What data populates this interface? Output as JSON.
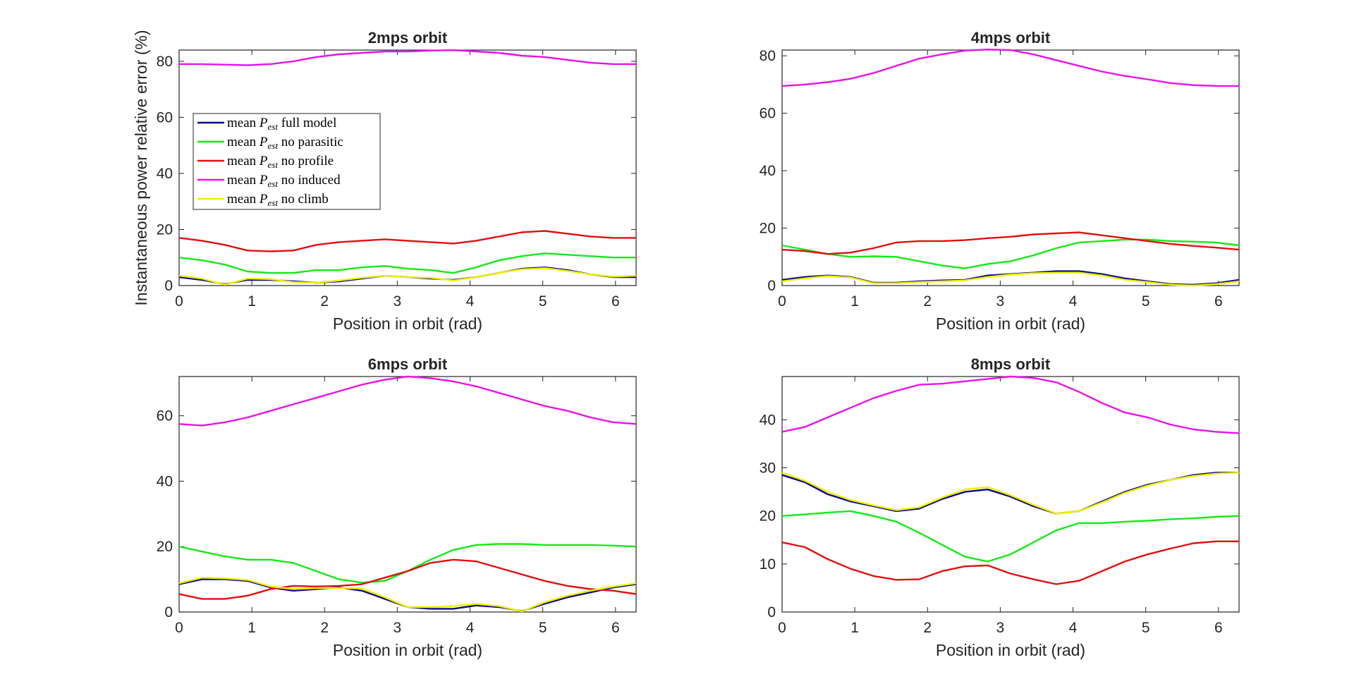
{
  "figure": {
    "ylabel": "Instantaneous power relative error (%)"
  },
  "legend": {
    "entries": [
      {
        "prefix": "mean ",
        "sym": "P",
        "sub": "est",
        "suffix": " full model",
        "color": "#0a0a8c"
      },
      {
        "prefix": "mean ",
        "sym": "P",
        "sub": "est",
        "suffix": " no parasitic",
        "color": "#18e818"
      },
      {
        "prefix": "mean ",
        "sym": "P",
        "sub": "est",
        "suffix": " no profile",
        "color": "#e01010"
      },
      {
        "prefix": "mean ",
        "sym": "P",
        "sub": "est",
        "suffix": " no induced",
        "color": "#e813e8"
      },
      {
        "prefix": "mean ",
        "sym": "P",
        "sub": "est",
        "suffix": " no climb",
        "color": "#f0f000"
      }
    ]
  },
  "chart_data": [
    {
      "type": "line",
      "title": "2mps orbit",
      "xlabel": "Position in orbit (rad)",
      "ylabel": "Instantaneous power relative error (%)",
      "xlim": [
        0,
        6.2832
      ],
      "ylim": [
        0,
        84
      ],
      "xticks": [
        0,
        1,
        2,
        3,
        4,
        5,
        6
      ],
      "yticks": [
        0,
        20,
        40,
        60,
        80
      ],
      "legend_position": "left-middle",
      "x": [
        0,
        0.314,
        0.628,
        0.942,
        1.257,
        1.571,
        1.885,
        2.199,
        2.513,
        2.827,
        3.142,
        3.456,
        3.77,
        4.084,
        4.398,
        4.712,
        5.027,
        5.341,
        5.655,
        5.969,
        6.283
      ],
      "series": [
        {
          "name": "mean Pest full model",
          "color": "#0a0a8c",
          "values": [
            3,
            2,
            0.5,
            2,
            2,
            1.5,
            1,
            1.5,
            2.5,
            3.5,
            3,
            2.5,
            2,
            3,
            4.5,
            6,
            6.5,
            5.5,
            4,
            3,
            3
          ]
        },
        {
          "name": "mean Pest no parasitic",
          "color": "#18e818",
          "values": [
            10,
            9,
            7.5,
            5,
            4.5,
            4.5,
            5.5,
            5.5,
            6.5,
            7,
            6,
            5.5,
            4.5,
            6.5,
            9,
            10.5,
            11.5,
            11,
            10.5,
            10,
            10
          ]
        },
        {
          "name": "mean Pest no profile",
          "color": "#e01010",
          "values": [
            17,
            16,
            14.5,
            12.5,
            12.2,
            12.5,
            14.5,
            15.5,
            16,
            16.5,
            16,
            15.5,
            15,
            16,
            17.5,
            19,
            19.5,
            18.5,
            17.5,
            17,
            17
          ]
        },
        {
          "name": "mean Pest no induced",
          "color": "#e813e8",
          "values": [
            79,
            79,
            78.8,
            78.6,
            79,
            80,
            81.5,
            82.5,
            83,
            83.5,
            83.5,
            83.8,
            84,
            83.5,
            83,
            82,
            81.5,
            80.5,
            79.5,
            79,
            79
          ]
        },
        {
          "name": "mean Pest no climb",
          "color": "#f0f000",
          "values": [
            3.5,
            2.5,
            0.3,
            2.5,
            2.3,
            1.2,
            1,
            1.8,
            2.8,
            3.5,
            3,
            2.8,
            1.8,
            3,
            4.5,
            5.8,
            6.2,
            5.2,
            4,
            3.2,
            3.5
          ]
        }
      ]
    },
    {
      "type": "line",
      "title": "4mps orbit",
      "xlabel": "Position in orbit (rad)",
      "ylabel": "",
      "xlim": [
        0,
        6.2832
      ],
      "ylim": [
        0,
        82
      ],
      "xticks": [
        0,
        1,
        2,
        3,
        4,
        5,
        6
      ],
      "yticks": [
        0,
        20,
        40,
        60,
        80
      ],
      "x": [
        0,
        0.314,
        0.628,
        0.942,
        1.257,
        1.571,
        1.885,
        2.199,
        2.513,
        2.827,
        3.142,
        3.456,
        3.77,
        4.084,
        4.398,
        4.712,
        5.027,
        5.341,
        5.655,
        5.969,
        6.283
      ],
      "series": [
        {
          "name": "mean Pest full model",
          "color": "#0a0a8c",
          "values": [
            2,
            3,
            3.5,
            3,
            1,
            1,
            1.5,
            1.8,
            2,
            3.5,
            4,
            4.5,
            5,
            5,
            4,
            2.5,
            1.5,
            0.5,
            0.3,
            0.8,
            2
          ]
        },
        {
          "name": "mean Pest no parasitic",
          "color": "#18e818",
          "values": [
            14,
            12.5,
            11,
            10,
            10.2,
            10,
            8.5,
            7,
            6,
            7.5,
            8.5,
            10.5,
            13,
            15,
            15.5,
            16,
            16,
            15.5,
            15.3,
            15,
            14
          ]
        },
        {
          "name": "mean Pest no profile",
          "color": "#e01010",
          "values": [
            12.5,
            12,
            11,
            11.5,
            13,
            15,
            15.5,
            15.5,
            15.8,
            16.5,
            17,
            17.8,
            18.2,
            18.5,
            17.5,
            16.5,
            15.5,
            14.5,
            13.8,
            13.2,
            12.5
          ]
        },
        {
          "name": "mean Pest no induced",
          "color": "#e813e8",
          "values": [
            69.5,
            70,
            70.8,
            72,
            74,
            76.5,
            79,
            80.5,
            81.8,
            82.2,
            82,
            80.5,
            78.5,
            76.5,
            74.5,
            73,
            71.8,
            70.5,
            69.8,
            69.5,
            69.5
          ]
        },
        {
          "name": "mean Pest no climb",
          "color": "#f0f000",
          "values": [
            1.5,
            2.5,
            3.3,
            2.8,
            0.8,
            0.8,
            1.2,
            1.5,
            1.8,
            3,
            3.8,
            4.3,
            4.5,
            4.5,
            3.5,
            2,
            1.2,
            0.3,
            0,
            0.5,
            1.5
          ]
        }
      ]
    },
    {
      "type": "line",
      "title": "6mps orbit",
      "xlabel": "Position in orbit (rad)",
      "ylabel": "",
      "xlim": [
        0,
        6.2832
      ],
      "ylim": [
        0,
        72
      ],
      "xticks": [
        0,
        1,
        2,
        3,
        4,
        5,
        6
      ],
      "yticks": [
        0,
        20,
        40,
        60
      ],
      "x": [
        0,
        0.314,
        0.628,
        0.942,
        1.257,
        1.571,
        1.885,
        2.199,
        2.513,
        2.827,
        3.142,
        3.456,
        3.77,
        4.084,
        4.398,
        4.712,
        5.027,
        5.341,
        5.655,
        5.969,
        6.283
      ],
      "series": [
        {
          "name": "mean Pest full model",
          "color": "#0a0a8c",
          "values": [
            8.5,
            10,
            10,
            9.5,
            7.5,
            6.5,
            7,
            7.5,
            6.5,
            4,
            1.5,
            1,
            1,
            2,
            1.5,
            0.3,
            2.5,
            4.5,
            6,
            7.5,
            8.5
          ]
        },
        {
          "name": "mean Pest no parasitic",
          "color": "#18e818",
          "values": [
            20,
            18.5,
            17,
            16,
            16,
            15,
            12.5,
            10,
            9,
            9.5,
            12.5,
            16,
            19,
            20.5,
            20.8,
            20.8,
            20.5,
            20.5,
            20.5,
            20.3,
            20
          ]
        },
        {
          "name": "mean Pest no profile",
          "color": "#e01010",
          "values": [
            5.5,
            4,
            4,
            5,
            7,
            8,
            7.8,
            8,
            8.5,
            10.5,
            12.5,
            15,
            16,
            15.5,
            13.5,
            11.5,
            9.5,
            8,
            7,
            6.5,
            5.5
          ]
        },
        {
          "name": "mean Pest no induced",
          "color": "#e813e8",
          "values": [
            57.5,
            57,
            58,
            59.5,
            61.5,
            63.5,
            65.5,
            67.5,
            69.5,
            71,
            72,
            71.5,
            70.5,
            69,
            67,
            65,
            63,
            61.5,
            59.5,
            58,
            57.5
          ]
        },
        {
          "name": "mean Pest no climb",
          "color": "#f0f000",
          "values": [
            8.8,
            10.5,
            10.3,
            9.8,
            7.8,
            7,
            7.3,
            7.3,
            7.2,
            4.5,
            1.5,
            1.5,
            1.8,
            2.5,
            1.8,
            0.2,
            3,
            5,
            6.5,
            7.8,
            8.8
          ]
        }
      ]
    },
    {
      "type": "line",
      "title": "8mps orbit",
      "xlabel": "Position in orbit (rad)",
      "ylabel": "",
      "xlim": [
        0,
        6.2832
      ],
      "ylim": [
        0,
        49
      ],
      "xticks": [
        0,
        1,
        2,
        3,
        4,
        5,
        6
      ],
      "yticks": [
        0,
        10,
        20,
        30,
        40
      ],
      "x": [
        0,
        0.314,
        0.628,
        0.942,
        1.257,
        1.571,
        1.885,
        2.199,
        2.513,
        2.827,
        3.142,
        3.456,
        3.77,
        4.084,
        4.398,
        4.712,
        5.027,
        5.341,
        5.655,
        5.969,
        6.283
      ],
      "series": [
        {
          "name": "mean Pest full model",
          "color": "#0a0a8c",
          "values": [
            28.5,
            27,
            24.5,
            23,
            22,
            21,
            21.5,
            23.5,
            25,
            25.5,
            24,
            22,
            20.5,
            21,
            23,
            25,
            26.5,
            27.5,
            28.5,
            29,
            29
          ]
        },
        {
          "name": "mean Pest no parasitic",
          "color": "#18e818",
          "values": [
            20,
            20.3,
            20.7,
            21,
            20,
            18.8,
            16.5,
            14,
            11.5,
            10.5,
            12,
            14.5,
            17,
            18.5,
            18.5,
            18.8,
            19,
            19.3,
            19.5,
            19.8,
            20
          ]
        },
        {
          "name": "mean Pest no profile",
          "color": "#e01010",
          "values": [
            14.5,
            13.5,
            11,
            9,
            7.5,
            6.7,
            6.8,
            8.5,
            9.5,
            9.7,
            8,
            6.8,
            5.8,
            6.5,
            8.5,
            10.5,
            12,
            13.2,
            14.3,
            14.7,
            14.7
          ]
        },
        {
          "name": "mean Pest no induced",
          "color": "#e813e8",
          "values": [
            37.5,
            38.5,
            40.5,
            42.5,
            44.5,
            46,
            47.3,
            47.5,
            48,
            48.5,
            49,
            48.7,
            47.8,
            45.8,
            43.5,
            41.5,
            40.5,
            39,
            38,
            37.5,
            37.2
          ]
        },
        {
          "name": "mean Pest no climb",
          "color": "#f0f000",
          "values": [
            29,
            27.3,
            25,
            23.3,
            22.2,
            21.2,
            21.8,
            23.8,
            25.5,
            26,
            24.3,
            22.3,
            20.5,
            21,
            22.8,
            24.8,
            26.3,
            27.5,
            28.3,
            28.8,
            29
          ]
        }
      ]
    }
  ]
}
